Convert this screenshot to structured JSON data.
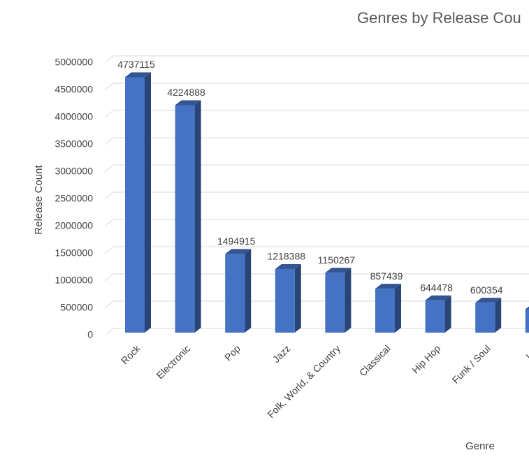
{
  "chart_data": {
    "type": "bar",
    "title": "Genres by Release Cou",
    "x_label": "Genre",
    "y_label": "Release Count",
    "categories": [
      "Rock",
      "Electronic",
      "Pop",
      "Jazz",
      "Folk, World, & Country",
      "Classical",
      "Hip Hop",
      "Funk / Soul",
      "Lati"
    ],
    "values": [
      4737115,
      4224888,
      1494915,
      1218388,
      1150267,
      857439,
      644478,
      600354,
      480000
    ],
    "color": "#4472c4",
    "ylim": [
      0,
      5000000
    ],
    "yticks": [
      0,
      500000,
      1000000,
      1500000,
      2000000,
      2500000,
      3000000,
      3500000,
      4000000,
      4500000,
      5000000
    ],
    "grid": true
  }
}
